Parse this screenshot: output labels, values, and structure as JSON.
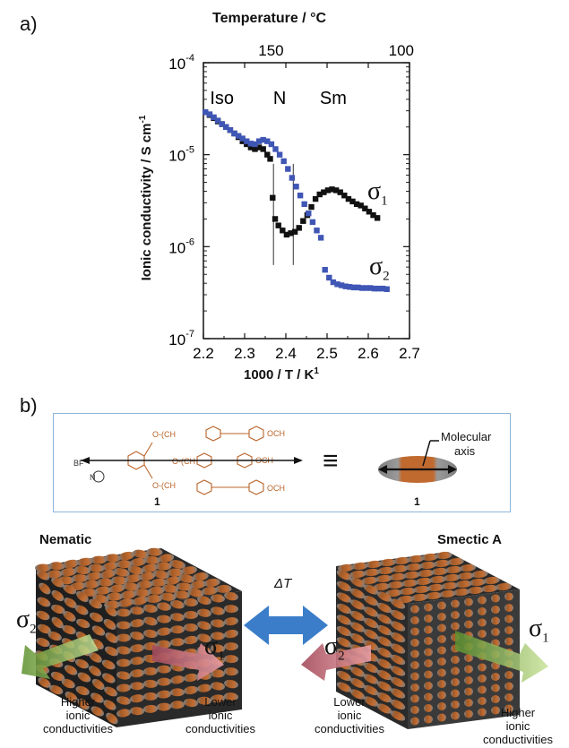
{
  "panel_a_label": "a)",
  "panel_b_label": "b)",
  "chart_data": {
    "type": "scatter",
    "xlabel": "1000 / T  / K",
    "xlabel_sup": "1",
    "ylabel": "Ionic conductivity / S cm",
    "ylabel_sup": "-1",
    "top_axis_label": "Temperature  / ",
    "top_axis_unit": "°C",
    "xlim": [
      2.2,
      2.7
    ],
    "ylim_log10": [
      -7,
      -4
    ],
    "x_ticks": [
      "2.2",
      "2.3",
      "2.4",
      "2.5",
      "2.6",
      "2.7"
    ],
    "y_ticks": [
      {
        "base": "10",
        "exp": "-4",
        "log": -4
      },
      {
        "base": "10",
        "exp": "-5",
        "log": -5
      },
      {
        "base": "10",
        "exp": "-6",
        "log": -6
      },
      {
        "base": "10",
        "exp": "-7",
        "log": -7
      }
    ],
    "top_ticks": [
      {
        "label": "150",
        "x": 2.364
      },
      {
        "label": "100",
        "x": 2.68
      }
    ],
    "phase_labels": [
      {
        "text": "Iso",
        "x": 2.245
      },
      {
        "text": "N",
        "x": 2.385
      },
      {
        "text": "Sm",
        "x": 2.515
      }
    ],
    "phase_boundaries": [
      {
        "x": 2.37,
        "y_top_log": -5.1,
        "y_bottom_log": -6.2
      },
      {
        "x": 2.418,
        "y_top_log": -5.1,
        "y_bottom_log": -6.2
      }
    ],
    "series": [
      {
        "name": "σ1",
        "label_sub": "1",
        "color": "#111111",
        "x": [
          2.205,
          2.215,
          2.225,
          2.235,
          2.245,
          2.255,
          2.265,
          2.275,
          2.285,
          2.295,
          2.305,
          2.315,
          2.325,
          2.335,
          2.345,
          2.355,
          2.362,
          2.368,
          2.374,
          2.382,
          2.392,
          2.402,
          2.412,
          2.422,
          2.432,
          2.442,
          2.452,
          2.462,
          2.472,
          2.482,
          2.492,
          2.502,
          2.512,
          2.522,
          2.532,
          2.542,
          2.552,
          2.562,
          2.572,
          2.582,
          2.592,
          2.602,
          2.612,
          2.622
        ],
        "y": [
          2.9e-05,
          2.7e-05,
          2.5e-05,
          2.3e-05,
          2.15e-05,
          2e-05,
          1.85e-05,
          1.7e-05,
          1.55e-05,
          1.4e-05,
          1.3e-05,
          1.2e-05,
          1.15e-05,
          1.2e-05,
          1.15e-05,
          1e-05,
          9e-06,
          3.4e-06,
          2e-06,
          1.7e-06,
          1.5e-06,
          1.35e-06,
          1.4e-06,
          1.45e-06,
          1.6e-06,
          1.9e-06,
          2.2e-06,
          2.7e-06,
          3.3e-06,
          3.7e-06,
          3.9e-06,
          4.1e-06,
          4.2e-06,
          4.1e-06,
          3.9e-06,
          3.6e-06,
          3.3e-06,
          3.1e-06,
          2.9e-06,
          2.8e-06,
          2.6e-06,
          2.4e-06,
          2.2e-06,
          2.05e-06
        ]
      },
      {
        "name": "σ2",
        "label_sub": "2",
        "color": "#3f56b5",
        "x": [
          2.205,
          2.215,
          2.225,
          2.235,
          2.245,
          2.255,
          2.265,
          2.275,
          2.285,
          2.295,
          2.305,
          2.315,
          2.325,
          2.335,
          2.345,
          2.355,
          2.365,
          2.375,
          2.385,
          2.395,
          2.405,
          2.415,
          2.425,
          2.435,
          2.445,
          2.455,
          2.465,
          2.475,
          2.485,
          2.495,
          2.505,
          2.515,
          2.525,
          2.535,
          2.545,
          2.555,
          2.565,
          2.575,
          2.585,
          2.595,
          2.605,
          2.615,
          2.625,
          2.635,
          2.645
        ],
        "y": [
          2.9e-05,
          2.75e-05,
          2.55e-05,
          2.35e-05,
          2.15e-05,
          2e-05,
          1.85e-05,
          1.7e-05,
          1.6e-05,
          1.5e-05,
          1.4e-05,
          1.32e-05,
          1.3e-05,
          1.4e-05,
          1.45e-05,
          1.4e-05,
          1.3e-05,
          1.15e-05,
          1e-05,
          8.5e-06,
          7e-06,
          5.6e-06,
          4.5e-06,
          3.6e-06,
          2.9e-06,
          2.3e-06,
          1.85e-06,
          1.5e-06,
          1.25e-06,
          5.6e-07,
          4.6e-07,
          4.1e-07,
          3.9e-07,
          3.8e-07,
          3.7e-07,
          3.65e-07,
          3.6e-07,
          3.6e-07,
          3.55e-07,
          3.55e-07,
          3.55e-07,
          3.5e-07,
          3.5e-07,
          3.5e-07,
          3.45e-07
        ]
      }
    ]
  },
  "scheme": {
    "compound_number_left": "1",
    "compound_number_right": "1",
    "equiv_symbol": "≡",
    "molecular_axis_label_line1": "Molecular",
    "molecular_axis_label_line2": "axis",
    "chem_och3_1": "OCH",
    "chem_och3_2": "OCH",
    "chem_och3_3": "OCH",
    "chem_chain_1": "O-(CH",
    "chem_chain_2": "O-(CH",
    "chem_chain_3": "O-(CH",
    "anion": "BF",
    "cation_n": "N"
  },
  "bottom": {
    "nematic_title": "Nematic",
    "smectic_title": "Smectic A",
    "delta_t": "ΔT",
    "sigma_symbol": "σ",
    "left_sigma2_sub": "2",
    "left_sigma1_sub": "1",
    "right_sigma2_sub": "2",
    "right_sigma1_sub": "1",
    "higher_left": [
      "Higher",
      "ionic",
      "conductivities"
    ],
    "lower_left": [
      "Lower",
      "ionic",
      "conductivities"
    ],
    "lower_right": [
      "Lower",
      "ionic",
      "conductivities"
    ],
    "higher_right": [
      "Higher",
      "ionic",
      "conductivities"
    ]
  }
}
